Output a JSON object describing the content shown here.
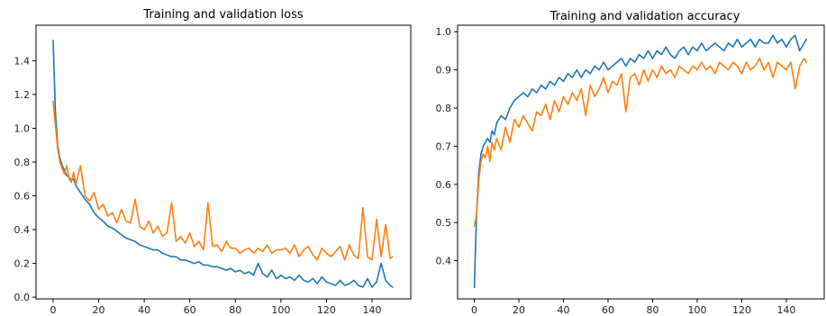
{
  "chart_data": [
    {
      "type": "line",
      "title": "Training and validation loss",
      "xlabel": "",
      "ylabel": "",
      "xlim": [
        -7.5,
        157
      ],
      "ylim": [
        -0.01,
        1.61
      ],
      "xticks": [
        0,
        20,
        40,
        60,
        80,
        100,
        120,
        140
      ],
      "yticks": [
        0.0,
        0.2,
        0.4,
        0.6,
        0.8,
        1.0,
        1.2,
        1.4
      ],
      "yticks_decimals": 1,
      "grid": false,
      "series": [
        {
          "color": "#1f77b4",
          "x": [
            0,
            1,
            2,
            3,
            4,
            5,
            6,
            7,
            8,
            9,
            10,
            12,
            14,
            16,
            18,
            20,
            22,
            24,
            26,
            28,
            30,
            32,
            34,
            36,
            38,
            40,
            42,
            44,
            46,
            48,
            50,
            52,
            54,
            56,
            58,
            60,
            62,
            64,
            66,
            68,
            70,
            72,
            74,
            76,
            78,
            80,
            82,
            84,
            86,
            88,
            90,
            92,
            94,
            96,
            98,
            100,
            102,
            104,
            106,
            108,
            110,
            112,
            114,
            116,
            118,
            120,
            122,
            124,
            126,
            128,
            130,
            132,
            134,
            136,
            138,
            140,
            142,
            144,
            146,
            148,
            149
          ],
          "y": [
            1.52,
            1.1,
            0.9,
            0.82,
            0.78,
            0.75,
            0.72,
            0.71,
            0.69,
            0.7,
            0.66,
            0.62,
            0.58,
            0.55,
            0.5,
            0.47,
            0.45,
            0.42,
            0.41,
            0.39,
            0.37,
            0.35,
            0.34,
            0.33,
            0.31,
            0.3,
            0.29,
            0.28,
            0.28,
            0.26,
            0.25,
            0.24,
            0.24,
            0.22,
            0.22,
            0.21,
            0.2,
            0.21,
            0.19,
            0.19,
            0.18,
            0.18,
            0.17,
            0.16,
            0.17,
            0.15,
            0.16,
            0.14,
            0.15,
            0.13,
            0.2,
            0.14,
            0.12,
            0.16,
            0.11,
            0.13,
            0.11,
            0.12,
            0.1,
            0.13,
            0.1,
            0.09,
            0.11,
            0.08,
            0.12,
            0.09,
            0.08,
            0.07,
            0.1,
            0.07,
            0.08,
            0.1,
            0.07,
            0.06,
            0.11,
            0.06,
            0.09,
            0.2,
            0.1,
            0.07,
            0.06
          ]
        },
        {
          "color": "#ff7f0e",
          "x": [
            0,
            1,
            2,
            3,
            4,
            5,
            6,
            7,
            8,
            9,
            10,
            12,
            14,
            16,
            18,
            20,
            22,
            24,
            26,
            28,
            30,
            32,
            34,
            36,
            38,
            40,
            42,
            44,
            46,
            48,
            50,
            52,
            54,
            56,
            58,
            60,
            62,
            64,
            66,
            68,
            70,
            72,
            74,
            76,
            78,
            80,
            82,
            84,
            86,
            88,
            90,
            92,
            94,
            96,
            98,
            100,
            102,
            104,
            106,
            108,
            110,
            112,
            114,
            116,
            118,
            120,
            122,
            124,
            126,
            128,
            130,
            132,
            134,
            136,
            138,
            140,
            142,
            144,
            146,
            148,
            149
          ],
          "y": [
            1.16,
            1.02,
            0.88,
            0.8,
            0.76,
            0.73,
            0.78,
            0.7,
            0.68,
            0.74,
            0.67,
            0.78,
            0.6,
            0.57,
            0.62,
            0.52,
            0.55,
            0.48,
            0.5,
            0.44,
            0.52,
            0.45,
            0.44,
            0.58,
            0.42,
            0.4,
            0.45,
            0.38,
            0.42,
            0.36,
            0.38,
            0.56,
            0.33,
            0.36,
            0.32,
            0.38,
            0.3,
            0.33,
            0.28,
            0.56,
            0.3,
            0.31,
            0.27,
            0.33,
            0.29,
            0.29,
            0.26,
            0.28,
            0.29,
            0.26,
            0.29,
            0.27,
            0.31,
            0.26,
            0.28,
            0.28,
            0.29,
            0.26,
            0.31,
            0.24,
            0.28,
            0.3,
            0.25,
            0.22,
            0.29,
            0.26,
            0.24,
            0.27,
            0.3,
            0.22,
            0.31,
            0.25,
            0.23,
            0.53,
            0.24,
            0.22,
            0.46,
            0.24,
            0.43,
            0.23,
            0.24
          ]
        }
      ]
    },
    {
      "type": "line",
      "title": "Training and validation accuracy",
      "xlabel": "",
      "ylabel": "",
      "xlim": [
        -7.5,
        157
      ],
      "ylim": [
        0.3,
        1.017
      ],
      "xticks": [
        0,
        20,
        40,
        60,
        80,
        100,
        120,
        140
      ],
      "yticks": [
        0.4,
        0.5,
        0.6,
        0.7,
        0.8,
        0.9,
        1.0
      ],
      "yticks_decimals": 1,
      "grid": false,
      "series": [
        {
          "color": "#1f77b4",
          "x": [
            0,
            1,
            2,
            3,
            4,
            5,
            6,
            7,
            8,
            9,
            10,
            12,
            14,
            16,
            18,
            20,
            22,
            24,
            26,
            28,
            30,
            32,
            34,
            36,
            38,
            40,
            42,
            44,
            46,
            48,
            50,
            52,
            54,
            56,
            58,
            60,
            62,
            64,
            66,
            68,
            70,
            72,
            74,
            76,
            78,
            80,
            82,
            84,
            86,
            88,
            90,
            92,
            94,
            96,
            98,
            100,
            102,
            104,
            106,
            108,
            110,
            112,
            114,
            116,
            118,
            120,
            122,
            124,
            126,
            128,
            130,
            132,
            134,
            136,
            138,
            140,
            142,
            144,
            146,
            148,
            149
          ],
          "y": [
            0.33,
            0.52,
            0.63,
            0.68,
            0.7,
            0.71,
            0.72,
            0.71,
            0.74,
            0.73,
            0.76,
            0.78,
            0.77,
            0.8,
            0.82,
            0.83,
            0.84,
            0.83,
            0.85,
            0.84,
            0.86,
            0.85,
            0.87,
            0.86,
            0.88,
            0.87,
            0.89,
            0.88,
            0.9,
            0.88,
            0.9,
            0.89,
            0.91,
            0.9,
            0.92,
            0.9,
            0.91,
            0.92,
            0.93,
            0.91,
            0.93,
            0.92,
            0.94,
            0.93,
            0.95,
            0.93,
            0.95,
            0.94,
            0.96,
            0.94,
            0.93,
            0.95,
            0.96,
            0.94,
            0.96,
            0.95,
            0.97,
            0.95,
            0.96,
            0.97,
            0.96,
            0.95,
            0.97,
            0.96,
            0.98,
            0.96,
            0.97,
            0.98,
            0.96,
            0.98,
            0.97,
            0.97,
            0.99,
            0.97,
            0.98,
            0.96,
            0.98,
            0.99,
            0.95,
            0.97,
            0.98
          ]
        },
        {
          "color": "#ff7f0e",
          "x": [
            0,
            1,
            2,
            3,
            4,
            5,
            6,
            7,
            8,
            9,
            10,
            12,
            14,
            16,
            18,
            20,
            22,
            24,
            26,
            28,
            30,
            32,
            34,
            36,
            38,
            40,
            42,
            44,
            46,
            48,
            50,
            52,
            54,
            56,
            58,
            60,
            62,
            64,
            66,
            68,
            70,
            72,
            74,
            76,
            78,
            80,
            82,
            84,
            86,
            88,
            90,
            92,
            94,
            96,
            98,
            100,
            102,
            104,
            106,
            108,
            110,
            112,
            114,
            116,
            118,
            120,
            122,
            124,
            126,
            128,
            130,
            132,
            134,
            136,
            138,
            140,
            142,
            144,
            146,
            148,
            149
          ],
          "y": [
            0.49,
            0.52,
            0.61,
            0.66,
            0.68,
            0.67,
            0.7,
            0.66,
            0.71,
            0.69,
            0.72,
            0.69,
            0.75,
            0.71,
            0.77,
            0.75,
            0.78,
            0.76,
            0.74,
            0.79,
            0.78,
            0.81,
            0.77,
            0.82,
            0.79,
            0.83,
            0.81,
            0.84,
            0.82,
            0.85,
            0.78,
            0.86,
            0.83,
            0.85,
            0.88,
            0.84,
            0.87,
            0.86,
            0.89,
            0.79,
            0.88,
            0.89,
            0.86,
            0.9,
            0.87,
            0.9,
            0.88,
            0.91,
            0.89,
            0.9,
            0.88,
            0.91,
            0.9,
            0.89,
            0.91,
            0.9,
            0.92,
            0.9,
            0.91,
            0.89,
            0.92,
            0.91,
            0.9,
            0.92,
            0.91,
            0.89,
            0.92,
            0.9,
            0.91,
            0.93,
            0.9,
            0.92,
            0.88,
            0.92,
            0.91,
            0.9,
            0.92,
            0.85,
            0.91,
            0.93,
            0.92
          ]
        }
      ]
    }
  ]
}
